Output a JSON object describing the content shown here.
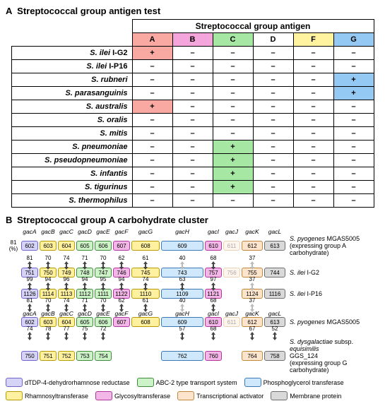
{
  "panelA": {
    "label": "A",
    "title": "Streptococcal group antigen test",
    "group_header": "Streptococcal group antigen",
    "columns": [
      "A",
      "B",
      "C",
      "D",
      "F",
      "G"
    ],
    "col_colors": [
      "#f9a9a2",
      "#f4a6dc",
      "#a6e7a3",
      "#ffffff",
      "#fff3a0",
      "#93c9f2"
    ],
    "rows": [
      {
        "name": "S. ilei I-G2",
        "italic_end": 7,
        "vals": [
          "+",
          "–",
          "–",
          "–",
          "–",
          "–"
        ],
        "hl": [
          0
        ]
      },
      {
        "name": "S. ilei I-P16",
        "italic_end": 7,
        "vals": [
          "–",
          "–",
          "–",
          "–",
          "–",
          "–"
        ],
        "hl": []
      },
      {
        "name": "S. rubneri",
        "italic_end": 99,
        "vals": [
          "–",
          "–",
          "–",
          "–",
          "–",
          "+"
        ],
        "hl": [
          5
        ]
      },
      {
        "name": "S. parasanguinis",
        "italic_end": 99,
        "vals": [
          "–",
          "–",
          "–",
          "–",
          "–",
          "+"
        ],
        "hl": [
          5
        ]
      },
      {
        "name": "S. australis",
        "italic_end": 99,
        "vals": [
          "+",
          "–",
          "–",
          "–",
          "–",
          "–"
        ],
        "hl": [
          0
        ]
      },
      {
        "name": "S. oralis",
        "italic_end": 99,
        "vals": [
          "–",
          "–",
          "–",
          "–",
          "–",
          "–"
        ],
        "hl": []
      },
      {
        "name": "S. mitis",
        "italic_end": 99,
        "vals": [
          "–",
          "–",
          "–",
          "–",
          "–",
          "–"
        ],
        "hl": []
      },
      {
        "name": "S. pneumoniae",
        "italic_end": 99,
        "vals": [
          "–",
          "–",
          "+",
          "–",
          "–",
          "–"
        ],
        "hl": [
          2
        ]
      },
      {
        "name": "S. pseudopneumoniae",
        "italic_end": 99,
        "vals": [
          "–",
          "–",
          "+",
          "–",
          "–",
          "–"
        ],
        "hl": [
          2
        ]
      },
      {
        "name": "S. infantis",
        "italic_end": 99,
        "vals": [
          "–",
          "–",
          "+",
          "–",
          "–",
          "–"
        ],
        "hl": [
          2
        ]
      },
      {
        "name": "S. tigurinus",
        "italic_end": 99,
        "vals": [
          "–",
          "–",
          "+",
          "–",
          "–",
          "–"
        ],
        "hl": [
          2
        ]
      },
      {
        "name": "S. thermophilus",
        "italic_end": 99,
        "vals": [
          "–",
          "–",
          "–",
          "–",
          "–",
          "–"
        ],
        "hl": []
      }
    ]
  },
  "panelB": {
    "label": "B",
    "title": "Streptococcal group A carbohydrate cluster",
    "gene_labels": [
      "gacA",
      "gacB",
      "gacC",
      "gacD",
      "gacE",
      "gacF",
      "gacG",
      "gacH",
      "gacI",
      "gacJ",
      "gacK",
      "gacL"
    ],
    "widths": [
      24,
      24,
      24,
      24,
      24,
      24,
      40,
      60,
      24,
      24,
      30,
      30
    ],
    "colors": {
      "dTDP": {
        "fill": "#d6d4f6",
        "stroke": "#6f64c9"
      },
      "rham": {
        "fill": "#fff1a0",
        "stroke": "#b59a00"
      },
      "abc": {
        "fill": "#cdf2c8",
        "stroke": "#3f8a3a"
      },
      "glyc": {
        "fill": "#f2b7e6",
        "stroke": "#b2349f"
      },
      "phos": {
        "fill": "#cfe8fb",
        "stroke": "#3b78b5"
      },
      "act": {
        "fill": "#fde4cd",
        "stroke": "#c0863a"
      },
      "memb": {
        "fill": "#d9d9d9",
        "stroke": "#6e6e6e"
      }
    },
    "legend_labels": {
      "dTDP": "dTDP-4-dehydrorhamnose reductase",
      "rham": "Rhamnosyltransferase",
      "abc": "ABC-2 type transport system",
      "glyc": "Glycosyltransferase",
      "phos": "Phosphoglycerol transferase",
      "act": "Transcriptional activator",
      "memb": "Membrane protein"
    },
    "note_pct": "81\n(%)",
    "tracks": [
      {
        "strain_html": "<span class='sp'>S. pyogenes</span> MGAS5005<br>(expressing group A carbohydrate)",
        "genes": [
          {
            "n": "602",
            "c": "dTDP"
          },
          {
            "n": "603",
            "c": "rham"
          },
          {
            "n": "604",
            "c": "rham"
          },
          {
            "n": "605",
            "c": "abc"
          },
          {
            "n": "606",
            "c": "abc"
          },
          {
            "n": "607",
            "c": "glyc"
          },
          {
            "n": "608",
            "c": "rham"
          },
          {
            "n": "609",
            "c": "phos"
          },
          {
            "n": "610",
            "c": "glyc"
          },
          {
            "n": "611",
            "c": "act",
            "faint": true
          },
          {
            "n": "612",
            "c": "act"
          },
          {
            "n": "613",
            "c": "memb"
          }
        ],
        "arrows_below": [
          "81",
          "70",
          "74",
          "71",
          "70",
          "62",
          "61",
          "40",
          "68",
          "",
          "37",
          ""
        ]
      },
      {
        "strain_html": "<span class='sp'>S. ilei</span> I-G2",
        "genes": [
          {
            "n": "751",
            "c": "dTDP"
          },
          {
            "n": "750",
            "c": "rham"
          },
          {
            "n": "749",
            "c": "rham"
          },
          {
            "n": "748",
            "c": "abc"
          },
          {
            "n": "747",
            "c": "abc"
          },
          {
            "n": "746",
            "c": "glyc"
          },
          {
            "n": "745",
            "c": "rham"
          },
          {
            "n": "743",
            "c": "phos"
          },
          {
            "n": "757",
            "c": "glyc"
          },
          {
            "n": "756",
            "c": "act",
            "faint": true
          },
          {
            "n": "755",
            "c": "act"
          },
          {
            "n": "744",
            "c": "memb"
          }
        ],
        "arrows_below": [
          "99",
          "94",
          "96",
          "94",
          "95",
          "94",
          "74",
          "63",
          "97",
          "",
          "37",
          ""
        ]
      },
      {
        "strain_html": "<span class='sp'>S. ilei</span> I-P16",
        "genes": [
          {
            "n": "1126",
            "c": "dTDP"
          },
          {
            "n": "1114",
            "c": "rham"
          },
          {
            "n": "1113",
            "c": "rham"
          },
          {
            "n": "1112",
            "c": "abc"
          },
          {
            "n": "1111",
            "c": "abc"
          },
          {
            "n": "1122",
            "c": "glyc"
          },
          {
            "n": "1110",
            "c": "rham"
          },
          {
            "n": "1109",
            "c": "phos"
          },
          {
            "n": "1121",
            "c": "glyc"
          },
          {
            "n": "",
            "c": "act",
            "blank": true
          },
          {
            "n": "1124",
            "c": "act"
          },
          {
            "n": "1116",
            "c": "memb"
          }
        ],
        "arrows_below": [
          "81",
          "70",
          "74",
          "71",
          "70",
          "62",
          "61",
          "40",
          "68",
          "",
          "37",
          ""
        ]
      },
      {
        "strain_html": "<span class='sp'>S. pyogenes</span> MGAS5005",
        "genes": [
          {
            "n": "602",
            "c": "dTDP"
          },
          {
            "n": "603",
            "c": "rham"
          },
          {
            "n": "604",
            "c": "rham"
          },
          {
            "n": "605",
            "c": "abc"
          },
          {
            "n": "606",
            "c": "abc"
          },
          {
            "n": "607",
            "c": "glyc"
          },
          {
            "n": "608",
            "c": "rham"
          },
          {
            "n": "609",
            "c": "phos"
          },
          {
            "n": "610",
            "c": "glyc"
          },
          {
            "n": "611",
            "c": "act",
            "faint": true
          },
          {
            "n": "612",
            "c": "act"
          },
          {
            "n": "613",
            "c": "memb"
          }
        ],
        "arrows_below": [
          "74",
          "78",
          "77",
          "75",
          "72",
          "",
          "",
          "57",
          "68",
          "",
          "67",
          "52"
        ]
      },
      {
        "strain_html": "<span class='sp'>S. dysgalactiae</span> subsp. <span class='sp'>equisimilis</span><br>GGS_124<br>(expressing group G carbohydrate)",
        "genes": [
          {
            "n": "750",
            "c": "dTDP"
          },
          {
            "n": "751",
            "c": "rham"
          },
          {
            "n": "752",
            "c": "rham"
          },
          {
            "n": "753",
            "c": "abc"
          },
          {
            "n": "754",
            "c": "abc"
          },
          {
            "n": "",
            "blank": true
          },
          {
            "n": "",
            "blank": true
          },
          {
            "n": "762",
            "c": "phos"
          },
          {
            "n": "760",
            "c": "glyc"
          },
          {
            "n": "",
            "blank": true
          },
          {
            "n": "764",
            "c": "act"
          },
          {
            "n": "758",
            "c": "memb"
          }
        ]
      }
    ]
  }
}
